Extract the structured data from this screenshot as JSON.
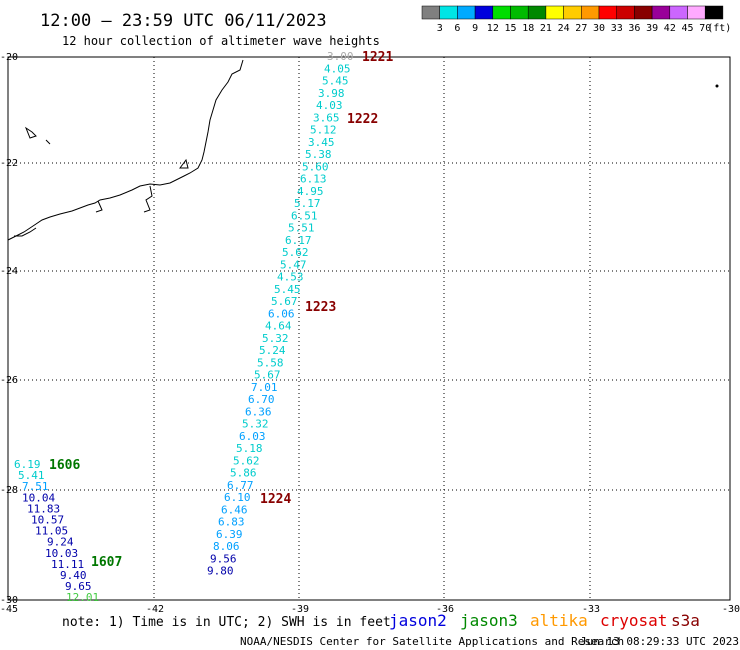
{
  "header": {
    "title": "12:00 – 23:59 UTC 06/11/2023",
    "subtitle": "12 hour collection of altimeter wave heights"
  },
  "legend": {
    "unit": "(ft)",
    "bins": [
      {
        "label": "",
        "color": "#808080"
      },
      {
        "label": "3",
        "color": "#00e5e5"
      },
      {
        "label": "6",
        "color": "#00aaff"
      },
      {
        "label": "9",
        "color": "#0000dd"
      },
      {
        "label": "12",
        "color": "#00dd00"
      },
      {
        "label": "15",
        "color": "#00bb00"
      },
      {
        "label": "18",
        "color": "#008800"
      },
      {
        "label": "21",
        "color": "#ffff00"
      },
      {
        "label": "24",
        "color": "#ffcc00"
      },
      {
        "label": "27",
        "color": "#ff9900"
      },
      {
        "label": "30",
        "color": "#ff0000"
      },
      {
        "label": "33",
        "color": "#cc0000"
      },
      {
        "label": "36",
        "color": "#880000"
      },
      {
        "label": "39",
        "color": "#990099"
      },
      {
        "label": "42",
        "color": "#cc66ff"
      },
      {
        "label": "45",
        "color": "#ffaaff"
      },
      {
        "label": "70",
        "color": "#000000"
      }
    ]
  },
  "axes": {
    "lat_ticks": [
      "-20",
      "-22",
      "-24",
      "-26",
      "-28",
      "-30"
    ],
    "lon_ticks": [
      "-45",
      "-42",
      "-39",
      "-36",
      "-33",
      "-30"
    ]
  },
  "colors": {
    "cyan": "#00cccc",
    "lightblue": "#00a0ff",
    "darkblue": "#0000aa",
    "green": "#44cc44",
    "gray": "#aaaaaa",
    "timered": "#880000",
    "timegreen": "#007700"
  },
  "track1": {
    "values": [
      {
        "v": "3.00",
        "c": "gray"
      },
      {
        "v": "4.05",
        "c": "cyan"
      },
      {
        "v": "5.45",
        "c": "cyan"
      },
      {
        "v": "3.98",
        "c": "cyan"
      },
      {
        "v": "4.03",
        "c": "cyan"
      },
      {
        "v": "3.65",
        "c": "cyan"
      },
      {
        "v": "5.12",
        "c": "cyan"
      },
      {
        "v": "3.45",
        "c": "cyan"
      },
      {
        "v": "5.38",
        "c": "cyan"
      },
      {
        "v": "5.60",
        "c": "cyan"
      },
      {
        "v": "6.13",
        "c": "cyan"
      },
      {
        "v": "4.95",
        "c": "cyan"
      },
      {
        "v": "5.17",
        "c": "cyan"
      },
      {
        "v": "6.51",
        "c": "cyan"
      },
      {
        "v": "5.51",
        "c": "cyan"
      },
      {
        "v": "6.17",
        "c": "cyan"
      },
      {
        "v": "5.62",
        "c": "cyan"
      },
      {
        "v": "5.47",
        "c": "cyan"
      },
      {
        "v": "4.53",
        "c": "cyan"
      },
      {
        "v": "5.45",
        "c": "cyan"
      },
      {
        "v": "5.67",
        "c": "cyan"
      },
      {
        "v": "6.06",
        "c": "lightblue"
      },
      {
        "v": "4.64",
        "c": "cyan"
      },
      {
        "v": "5.32",
        "c": "cyan"
      },
      {
        "v": "5.24",
        "c": "cyan"
      },
      {
        "v": "5.58",
        "c": "cyan"
      },
      {
        "v": "5.67",
        "c": "cyan"
      },
      {
        "v": "7.01",
        "c": "lightblue"
      },
      {
        "v": "6.70",
        "c": "lightblue"
      },
      {
        "v": "6.36",
        "c": "lightblue"
      },
      {
        "v": "5.32",
        "c": "cyan"
      },
      {
        "v": "6.03",
        "c": "lightblue"
      },
      {
        "v": "5.18",
        "c": "cyan"
      },
      {
        "v": "5.62",
        "c": "cyan"
      },
      {
        "v": "5.86",
        "c": "cyan"
      },
      {
        "v": "6.77",
        "c": "lightblue"
      },
      {
        "v": "6.10",
        "c": "lightblue"
      },
      {
        "v": "6.46",
        "c": "lightblue"
      },
      {
        "v": "6.83",
        "c": "lightblue"
      },
      {
        "v": "6.39",
        "c": "lightblue"
      },
      {
        "v": "8.06",
        "c": "lightblue"
      },
      {
        "v": "9.56",
        "c": "darkblue"
      },
      {
        "v": "9.80",
        "c": "darkblue"
      }
    ],
    "times": [
      "1221",
      "1222",
      "1223",
      "1224"
    ]
  },
  "track2": {
    "values": [
      {
        "v": "6.19",
        "c": "cyan"
      },
      {
        "v": "5.41",
        "c": "cyan"
      },
      {
        "v": "7.51",
        "c": "lightblue"
      },
      {
        "v": "10.04",
        "c": "darkblue"
      },
      {
        "v": "11.83",
        "c": "darkblue"
      },
      {
        "v": "10.57",
        "c": "darkblue"
      },
      {
        "v": "11.05",
        "c": "darkblue"
      },
      {
        "v": "9.24",
        "c": "darkblue"
      },
      {
        "v": "10.03",
        "c": "darkblue"
      },
      {
        "v": "11.11",
        "c": "darkblue"
      },
      {
        "v": "9.40",
        "c": "darkblue"
      },
      {
        "v": "9.65",
        "c": "darkblue"
      },
      {
        "v": "12.01",
        "c": "green"
      }
    ],
    "times": [
      "1606",
      "1607"
    ]
  },
  "footer": {
    "note": "note:  1) Time is in UTC;  2) SWH is in feet",
    "satellites": [
      {
        "name": "jason2",
        "color": "#0000dd"
      },
      {
        "name": "jason3",
        "color": "#008800"
      },
      {
        "name": "altika",
        "color": "#ff9900"
      },
      {
        "name": "cryosat",
        "color": "#dd0000"
      },
      {
        "name": "s3a",
        "color": "#880000"
      }
    ],
    "credit": "NOAA/NESDIS Center for Satellite Applications and Research",
    "stamp": "Jun 13 08:29:33 UTC 2023"
  }
}
